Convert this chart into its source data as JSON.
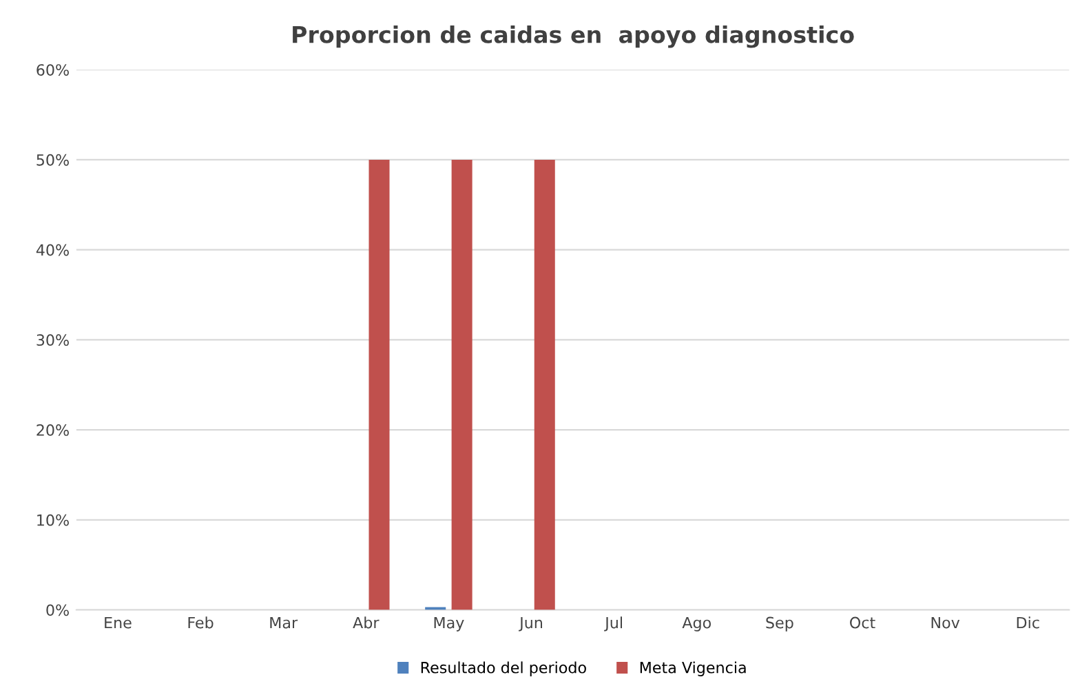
{
  "chart_data": {
    "type": "bar",
    "title": "Proporcion de caidas en  apoyo diagnostico",
    "categories": [
      "Ene",
      "Feb",
      "Mar",
      "Abr",
      "May",
      "Jun",
      "Jul",
      "Ago",
      "Sep",
      "Oct",
      "Nov",
      "Dic"
    ],
    "series": [
      {
        "name": "Resultado del periodo",
        "color": "#4f81bd",
        "values": [
          null,
          null,
          null,
          null,
          0.3,
          null,
          null,
          null,
          null,
          null,
          null,
          null
        ]
      },
      {
        "name": "Meta Vigencia",
        "color": "#c0504d",
        "values": [
          null,
          null,
          null,
          50,
          50,
          50,
          null,
          null,
          null,
          null,
          null,
          null
        ]
      }
    ],
    "ylim": [
      0,
      60
    ],
    "yticks": [
      {
        "value": 0,
        "label": "0%"
      },
      {
        "value": 10,
        "label": "10%"
      },
      {
        "value": 20,
        "label": "20%"
      },
      {
        "value": 30,
        "label": "30%"
      },
      {
        "value": 40,
        "label": "40%"
      },
      {
        "value": 50,
        "label": "50%"
      },
      {
        "value": 60,
        "label": "60%"
      }
    ],
    "grid": "y",
    "legend": "bottom"
  }
}
